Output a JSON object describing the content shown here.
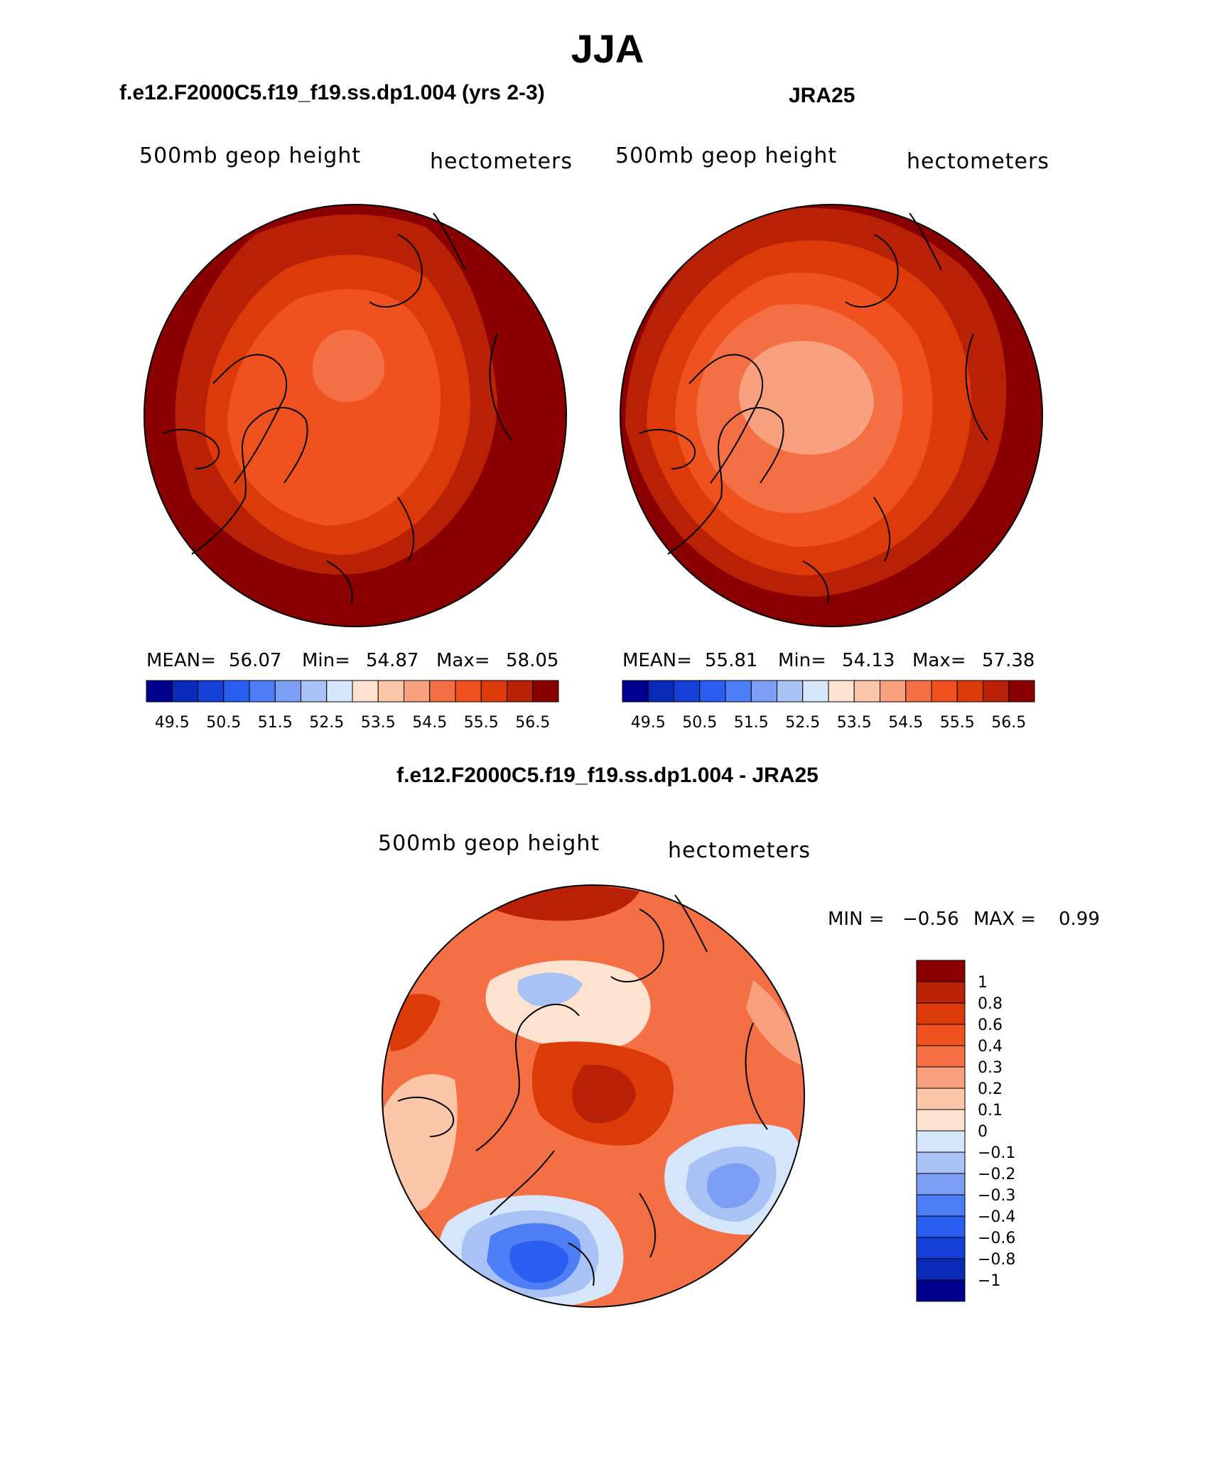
{
  "title": "JJA",
  "panels": [
    {
      "title": "f.e12.F2000C5.f19_f19.ss.dp1.004 (yrs 2-3)",
      "variable": "500mb geop height",
      "units": "hectometers",
      "stats": {
        "mean_label": "MEAN=",
        "mean": "56.07",
        "min_label": "Min=",
        "min": "54.87",
        "max_label": "Max=",
        "max": "58.05"
      }
    },
    {
      "title": "JRA25",
      "variable": "500mb geop height",
      "units": "hectometers",
      "stats": {
        "mean_label": "MEAN=",
        "mean": "55.81",
        "min_label": "Min=",
        "min": "54.13",
        "max_label": "Max=",
        "max": "57.38"
      }
    }
  ],
  "colorbar": {
    "colors": [
      "#000090",
      "#0a2ab8",
      "#1540d8",
      "#2a5ef0",
      "#4d7ef5",
      "#7d9ef5",
      "#a9c2f6",
      "#d6e6fa",
      "#fde2d0",
      "#fcc6a8",
      "#f9a07e",
      "#f46f44",
      "#f0521f",
      "#dd3a0a",
      "#b82106",
      "#8a0000"
    ],
    "labels": [
      "49.5",
      "50.5",
      "51.5",
      "52.5",
      "53.5",
      "54.5",
      "55.5",
      "56.5"
    ]
  },
  "difference": {
    "title": "f.e12.F2000C5.f19_f19.ss.dp1.004 - JRA25",
    "variable": "500mb geop height",
    "units": "hectometers",
    "min_label": "MIN =",
    "min": "−0.56",
    "max_label": "MAX =",
    "max": "0.99",
    "legend": {
      "colors": [
        "#8a0000",
        "#b82106",
        "#dd3a0a",
        "#f0521f",
        "#f46f44",
        "#f9a07e",
        "#fcc6a8",
        "#fde2d0",
        "#d6e6fa",
        "#a9c2f6",
        "#7d9ef5",
        "#4d7ef5",
        "#2a5ef0",
        "#1540d8",
        "#0a2ab8",
        "#000090"
      ],
      "labels": [
        "1",
        "0.8",
        "0.6",
        "0.4",
        "0.3",
        "0.2",
        "0.1",
        "0",
        "−0.1",
        "−0.2",
        "−0.3",
        "−0.4",
        "−0.6",
        "−0.8",
        "−1"
      ]
    }
  }
}
